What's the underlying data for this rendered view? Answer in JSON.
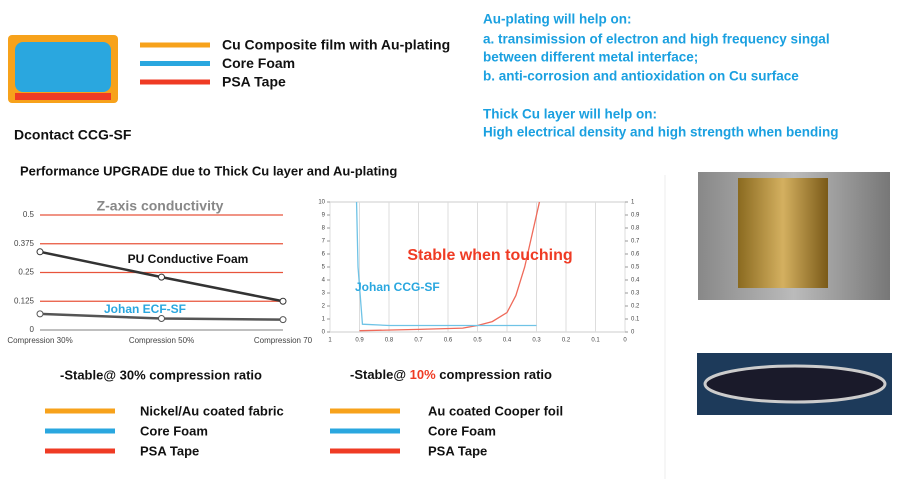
{
  "header": {
    "legend": [
      {
        "label": "Cu Composite film with Au-plating",
        "color": "#f7a21b"
      },
      {
        "label": "Core Foam",
        "color": "#2aa7df"
      },
      {
        "label": "PSA Tape",
        "color": "#ef3b24"
      }
    ],
    "product": "Dcontact CCG-SF"
  },
  "notes": [
    "Au-plating will help on:",
    "a. transimission of electron and high frequency singal",
    "between different metal interface;",
    "b. anti-corrosion and antioxidation on Cu surface",
    "Thick Cu layer will help on:",
    "High electrical density and high strength when bending"
  ],
  "section_title": "Performance UPGRADE due to Thick Cu layer and Au-plating",
  "chart_data": [
    {
      "type": "line",
      "title": "Z-axis conductivity",
      "categories": [
        "Compression 30%",
        "Compression 50%",
        "Compression 70"
      ],
      "ylim": [
        0,
        0.5
      ],
      "yticks": [
        0,
        0.125,
        0.25,
        0.375,
        0.5
      ],
      "grid": true,
      "series": [
        {
          "name": "PU Conductive Foam",
          "color": "#333333",
          "values": [
            0.34,
            0.23,
            0.125
          ]
        },
        {
          "name": "Johan ECF-SF",
          "color": "#555555",
          "values": [
            0.07,
            0.05,
            0.045
          ]
        }
      ]
    },
    {
      "type": "line",
      "title": "Stable when touching",
      "xlim": [
        1,
        0
      ],
      "xticks": [
        1,
        0.9,
        0.8,
        0.7,
        0.6,
        0.5,
        0.4,
        0.3,
        0.2,
        0.1,
        0
      ],
      "ylim": [
        0,
        10
      ],
      "yticks": [
        0,
        1,
        2,
        3,
        4,
        5,
        6,
        7,
        8,
        9,
        10
      ],
      "y2lim": [
        0,
        1
      ],
      "y2ticks": [
        0,
        0.1,
        0.2,
        0.3,
        0.4,
        0.5,
        0.6,
        0.7,
        0.8,
        0.9,
        1
      ],
      "series": [
        {
          "color": "#ef6a5a",
          "x": [
            0.9,
            0.7,
            0.55,
            0.5,
            0.45,
            0.4,
            0.37,
            0.34,
            0.31,
            0.29
          ],
          "values": [
            0.1,
            0.2,
            0.3,
            0.5,
            0.8,
            1.5,
            2.8,
            5,
            8,
            10
          ]
        },
        {
          "name": "Johan CCG-SF",
          "color": "#6fc3e6",
          "axis": "y2",
          "x": [
            0.91,
            0.905,
            0.89,
            0.8,
            0.6,
            0.4,
            0.3
          ],
          "values": [
            1,
            0.5,
            0.06,
            0.05,
            0.05,
            0.05,
            0.05
          ]
        }
      ]
    }
  ],
  "captions": {
    "left": "-Stable@ 30% compression ratio",
    "right": [
      "-Stable@ ",
      "10%",
      " compression ratio"
    ]
  },
  "legend_left": [
    {
      "label": "Nickel/Au  coated fabric",
      "color": "#f7a21b"
    },
    {
      "label": "Core Foam",
      "color": "#2aa7df"
    },
    {
      "label": "PSA Tape",
      "color": "#ef3b24"
    }
  ],
  "legend_right": [
    {
      "label": "Au  coated Cooper foil",
      "color": "#f7a21b"
    },
    {
      "label": "Core Foam",
      "color": "#2aa7df"
    },
    {
      "label": "PSA Tape",
      "color": "#ef3b24"
    }
  ]
}
